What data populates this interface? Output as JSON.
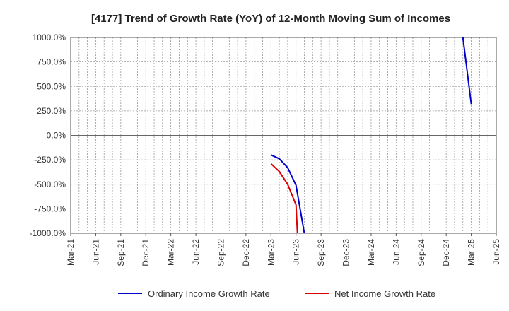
{
  "chart_data": {
    "type": "line",
    "title": "[4177]  Trend of Growth Rate (YoY) of 12-Month Moving Sum of Incomes",
    "xlabel": "",
    "ylabel": "",
    "x_ticks": [
      "Mar-21",
      "Jun-21",
      "Sep-21",
      "Dec-21",
      "Mar-22",
      "Jun-22",
      "Sep-22",
      "Dec-22",
      "Mar-23",
      "Jun-23",
      "Sep-23",
      "Dec-23",
      "Mar-24",
      "Jun-24",
      "Sep-24",
      "Dec-24",
      "Mar-25",
      "Jun-25"
    ],
    "y_ticks": [
      "1000.0%",
      "750.0%",
      "500.0%",
      "250.0%",
      "0.0%",
      "-250.0%",
      "-500.0%",
      "-750.0%",
      "-1000.0%"
    ],
    "ylim": [
      -1000,
      1000
    ],
    "grid": true,
    "legend_position": "bottom",
    "series": [
      {
        "name": "Ordinary Income Growth Rate",
        "color": "#0000cc",
        "points": [
          {
            "x": "Mar-23",
            "y": -200
          },
          {
            "x": "Apr-23",
            "y": -240
          },
          {
            "x": "May-23",
            "y": -330
          },
          {
            "x": "Jun-23",
            "y": -510
          },
          {
            "x": "Jul-23",
            "y": -1000,
            "clipped": true
          }
        ]
      },
      {
        "name": "Net Income Growth Rate",
        "color": "#dd0000",
        "points": [
          {
            "x": "Mar-23",
            "y": -290
          },
          {
            "x": "Apr-23",
            "y": -370
          },
          {
            "x": "May-23",
            "y": -500
          },
          {
            "x": "Jun-23",
            "y": -710
          },
          {
            "x": "Jun-23",
            "y": -1000,
            "clipped": true
          }
        ]
      },
      {
        "name": "Ordinary Income Growth Rate",
        "color": "#0000cc",
        "segment": "late",
        "points": [
          {
            "x": "Feb-25",
            "y": 1000,
            "clipped": true
          },
          {
            "x": "Mar-25",
            "y": 320
          }
        ]
      }
    ]
  }
}
